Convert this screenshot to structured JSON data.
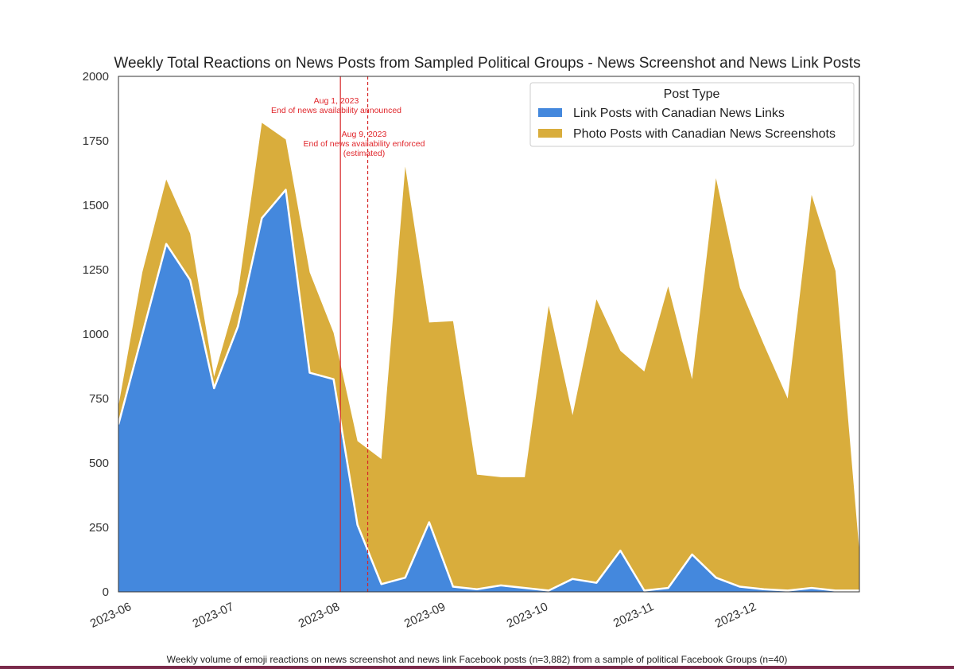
{
  "caption": "Weekly volume of emoji reactions on news screenshot and news link Facebook posts (n=3,882) from a sample of political Facebook Groups (n=40)",
  "chart_data": {
    "type": "area",
    "stacked": true,
    "title": "Weekly Total Reactions on News Posts from Sampled Political Groups - News Screenshot and News Link Posts",
    "xlabel": "",
    "ylabel": "",
    "xlim": [
      "2023-05-28",
      "2023-12-31"
    ],
    "ylim": [
      0,
      2000
    ],
    "yticks": [
      0,
      250,
      500,
      750,
      1000,
      1250,
      1500,
      1750,
      2000
    ],
    "xticks": [
      "2023-06",
      "2023-07",
      "2023-08",
      "2023-09",
      "2023-10",
      "2023-11",
      "2023-12"
    ],
    "grid": false,
    "legend": {
      "title": "Post Type",
      "placement": "top-right"
    },
    "x": [
      "2023-05-28",
      "2023-06-04",
      "2023-06-11",
      "2023-06-18",
      "2023-06-25",
      "2023-07-02",
      "2023-07-09",
      "2023-07-16",
      "2023-07-23",
      "2023-07-30",
      "2023-08-06",
      "2023-08-13",
      "2023-08-20",
      "2023-08-27",
      "2023-09-03",
      "2023-09-10",
      "2023-09-17",
      "2023-09-24",
      "2023-10-01",
      "2023-10-08",
      "2023-10-15",
      "2023-10-22",
      "2023-10-29",
      "2023-11-05",
      "2023-11-12",
      "2023-11-19",
      "2023-11-26",
      "2023-12-03",
      "2023-12-10",
      "2023-12-17",
      "2023-12-24",
      "2023-12-31"
    ],
    "series": [
      {
        "name": "Link Posts with Canadian News Links",
        "color": "#4488dd",
        "values": [
          650,
          1000,
          1350,
          1210,
          790,
          1030,
          1450,
          1560,
          850,
          825,
          260,
          30,
          55,
          270,
          20,
          10,
          25,
          15,
          5,
          50,
          35,
          160,
          5,
          15,
          145,
          55,
          20,
          10,
          5,
          15,
          5,
          5
        ]
      },
      {
        "name": "Photo Posts with Canadian News Screenshots",
        "color": "#d9ad3c",
        "values": [
          70,
          240,
          250,
          180,
          45,
          130,
          370,
          195,
          390,
          180,
          325,
          485,
          1595,
          775,
          1030,
          445,
          420,
          430,
          1105,
          635,
          1100,
          775,
          850,
          1170,
          680,
          1550,
          1160,
          950,
          745,
          1525,
          1240,
          150
        ]
      }
    ],
    "annotations": [
      {
        "date": "2023-08-01",
        "line": "solid",
        "color": "#d62728",
        "lines": [
          "Aug 1, 2023",
          "End of news availability announced"
        ]
      },
      {
        "date": "2023-08-09",
        "line": "dashed",
        "color": "#d62728",
        "lines": [
          "Aug 9, 2023",
          "End of news availability enforced",
          "(estimated)"
        ]
      }
    ]
  }
}
